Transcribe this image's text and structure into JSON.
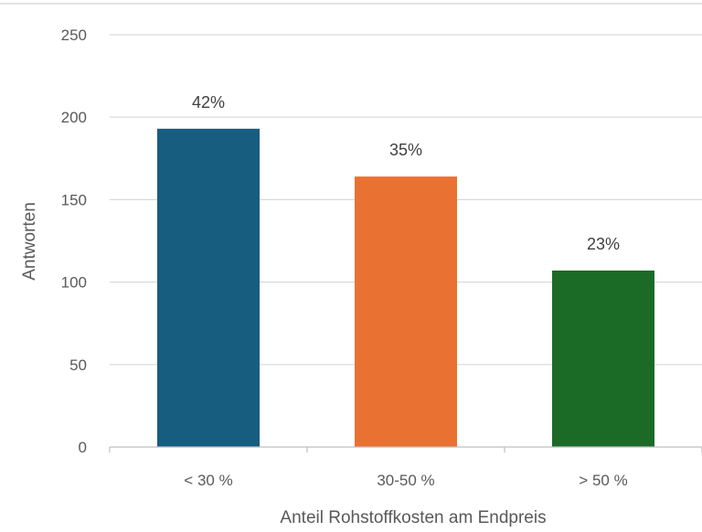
{
  "chart_data": {
    "type": "bar",
    "title": "",
    "xlabel": "Anteil Rohstoffkosten am Endpreis",
    "ylabel": "Antworten",
    "categories": [
      "< 30 %",
      "30-50 %",
      "> 50 %"
    ],
    "values": [
      193,
      164,
      107
    ],
    "data_labels": [
      "42%",
      "35%",
      "23%"
    ],
    "colors": [
      "#175d80",
      "#e97132",
      "#1b6b27"
    ],
    "ylim": [
      0,
      250
    ],
    "yticks": [
      "0",
      "50",
      "100",
      "150",
      "200",
      "250"
    ],
    "grid": true,
    "legend": "none"
  }
}
